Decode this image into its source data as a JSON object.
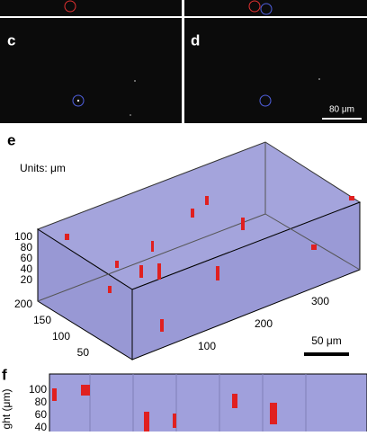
{
  "top_panels": [
    {
      "label": "c"
    },
    {
      "label": "d"
    }
  ],
  "top_scale_bar": "80 μm",
  "panel_e": {
    "label": "e",
    "units": "Units: μm",
    "z_ticks": [
      100,
      80,
      60,
      40,
      20
    ],
    "y_ticks": [
      200,
      150,
      100,
      50
    ],
    "x_ticks": [
      100,
      200,
      300
    ],
    "scale_bar": "50 μm"
  },
  "panel_f": {
    "label": "f",
    "y_label": "ght (μm)",
    "y_ticks": [
      100,
      80,
      60,
      40
    ]
  }
}
